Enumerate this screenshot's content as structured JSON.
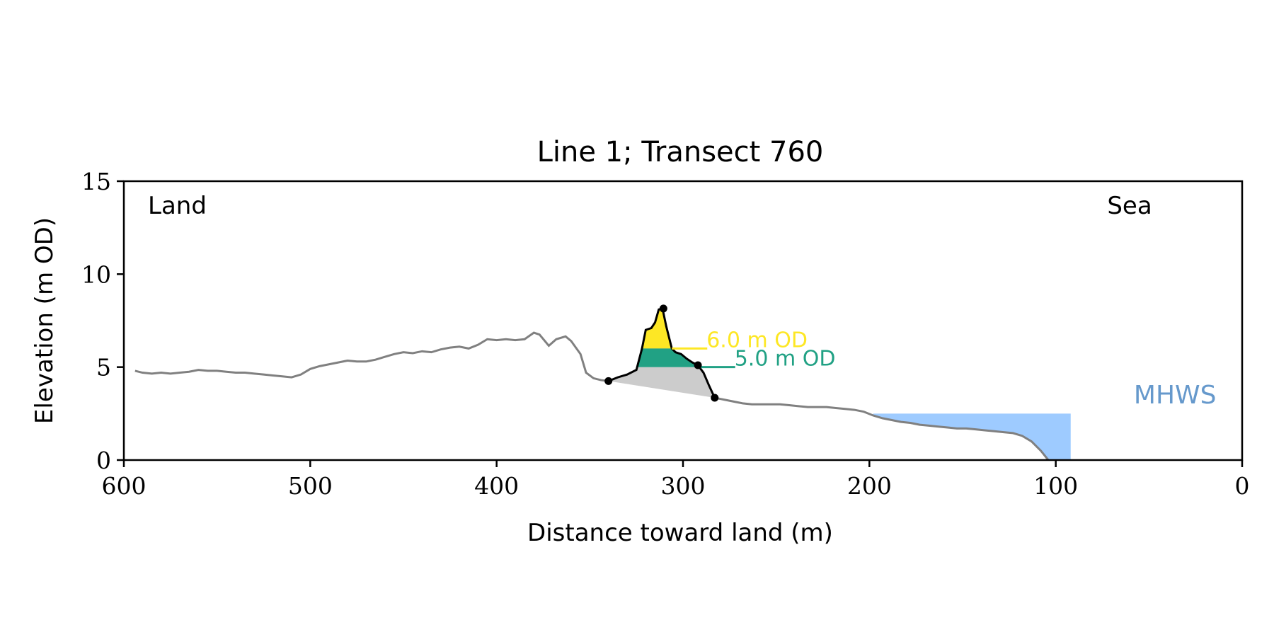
{
  "chart_data": {
    "type": "line",
    "title": "Line 1; Transect 760",
    "xlabel": "Distance toward land (m)",
    "ylabel": "Elevation (m OD)",
    "xlim": [
      600,
      0
    ],
    "ylim": [
      0,
      15
    ],
    "xticks": [
      600,
      500,
      400,
      300,
      200,
      100,
      0
    ],
    "yticks": [
      0,
      5,
      10,
      15
    ],
    "grid": false,
    "land_label": "Land",
    "sea_label": "Sea",
    "profile": {
      "color": "#808080",
      "x": [
        594,
        590,
        585,
        580,
        575,
        570,
        565,
        560,
        555,
        550,
        545,
        540,
        535,
        530,
        525,
        520,
        515,
        510,
        505,
        500,
        495,
        490,
        485,
        480,
        475,
        470,
        465,
        460,
        455,
        450,
        445,
        440,
        435,
        430,
        425,
        420,
        415,
        410,
        405,
        400,
        395,
        390,
        385,
        380,
        377,
        372,
        368,
        363,
        360,
        355,
        352,
        348,
        344,
        340
      ],
      "y": [
        4.8,
        4.7,
        4.65,
        4.7,
        4.65,
        4.7,
        4.75,
        4.85,
        4.8,
        4.8,
        4.75,
        4.7,
        4.7,
        4.65,
        4.6,
        4.55,
        4.5,
        4.45,
        4.6,
        4.9,
        5.05,
        5.15,
        5.25,
        5.35,
        5.3,
        5.3,
        5.4,
        5.55,
        5.7,
        5.8,
        5.75,
        5.85,
        5.8,
        5.95,
        6.05,
        6.1,
        6.0,
        6.2,
        6.5,
        6.45,
        6.5,
        6.45,
        6.5,
        6.85,
        6.75,
        6.15,
        6.5,
        6.65,
        6.4,
        5.7,
        4.7,
        4.4,
        4.3,
        4.25
      ]
    },
    "profile_seaward": {
      "color": "#808080",
      "x": [
        283,
        278,
        273,
        268,
        263,
        258,
        253,
        248,
        243,
        238,
        233,
        228,
        223,
        218,
        213,
        208,
        203,
        198,
        193,
        188,
        183,
        178,
        173,
        168,
        163,
        158,
        153,
        148,
        143,
        138,
        133,
        128,
        123,
        118,
        113,
        108,
        104
      ],
      "y": [
        3.35,
        3.25,
        3.15,
        3.05,
        3.0,
        3.0,
        3.0,
        3.0,
        2.95,
        2.9,
        2.85,
        2.85,
        2.85,
        2.8,
        2.75,
        2.7,
        2.6,
        2.4,
        2.25,
        2.15,
        2.05,
        2.0,
        1.9,
        1.85,
        1.8,
        1.75,
        1.7,
        1.7,
        1.65,
        1.6,
        1.55,
        1.5,
        1.45,
        1.3,
        1.0,
        0.5,
        0.0
      ]
    },
    "dune": {
      "color": "#000000",
      "x": [
        340,
        335,
        330,
        325,
        322,
        320,
        317,
        315,
        313,
        311,
        309,
        306,
        304,
        301,
        298,
        295,
        292,
        289,
        286,
        283
      ],
      "y": [
        4.25,
        4.45,
        4.6,
        4.85,
        6.0,
        7.0,
        7.1,
        7.4,
        8.1,
        8.15,
        7.2,
        6.0,
        5.8,
        5.7,
        5.45,
        5.25,
        5.1,
        4.7,
        4.0,
        3.35
      ],
      "points": [
        {
          "x": 340,
          "y": 4.25
        },
        {
          "x": 310.5,
          "y": 8.15
        },
        {
          "x": 292,
          "y": 5.1
        },
        {
          "x": 283,
          "y": 3.35
        }
      ]
    },
    "dune_base_area": {
      "color": "#cccccc",
      "from": {
        "x": 340,
        "y": 4.25
      },
      "to": {
        "x": 283,
        "y": 3.35
      }
    },
    "contours": [
      {
        "level": 6.0,
        "label": "6.0 m OD",
        "color": "#fde725",
        "line_to_x": 287
      },
      {
        "level": 5.0,
        "label": "5.0 m OD",
        "color": "#21a184",
        "line_to_x": 272
      }
    ],
    "mhws": {
      "label": "MHWS",
      "level": 2.5,
      "x_from": 198,
      "x_to": 92,
      "fill_color": "#9ecbff",
      "label_color": "#6699cc"
    }
  }
}
